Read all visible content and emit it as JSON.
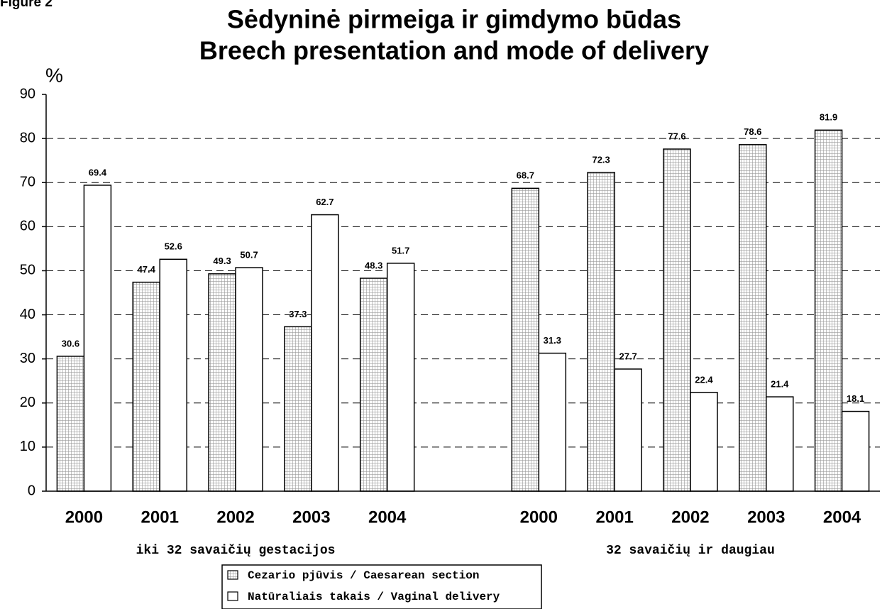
{
  "chart_data": {
    "type": "bar",
    "figure_label": "Figure 2",
    "title": "Sėdyninė pirmeiga ir gimdymo būdas",
    "subtitle": "Breech presentation and mode of delivery",
    "y_axis_label": "%",
    "categories": [
      "2000",
      "2001",
      "2002",
      "2003",
      "2004",
      null,
      "2000",
      "2001",
      "2002",
      "2003",
      "2004"
    ],
    "groups": [
      {
        "label": "iki 32 savaičių  gestacijos",
        "from": 0,
        "to": 4
      },
      {
        "label": "32 savaičių ir daugiau",
        "from": 6,
        "to": 10
      }
    ],
    "series": [
      {
        "name": "Cezario pjūvis / Caesarean section",
        "color": "#9a9a9a",
        "pattern": "crosshatch",
        "values": [
          30.6,
          47.4,
          49.3,
          37.3,
          48.3,
          null,
          68.7,
          72.3,
          77.6,
          78.6,
          81.9
        ]
      },
      {
        "name": "Natūraliais takais / Vaginal delivery",
        "color": "#ffffff",
        "values": [
          69.4,
          52.6,
          50.7,
          62.7,
          51.7,
          null,
          31.3,
          27.7,
          22.4,
          21.4,
          18.1
        ]
      }
    ],
    "ylim": [
      0,
      90
    ],
    "yticks": [
      0,
      10,
      20,
      30,
      40,
      50,
      60,
      70,
      80,
      90
    ],
    "grid": true,
    "legend": "bottom"
  }
}
